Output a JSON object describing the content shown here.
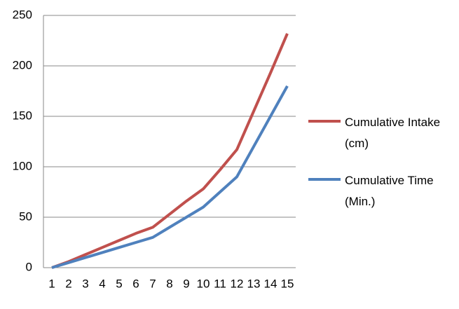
{
  "chart_data": {
    "type": "line",
    "categories": [
      "1",
      "2",
      "3",
      "4",
      "5",
      "6",
      "7",
      "8",
      "9",
      "10",
      "11",
      "12",
      "13",
      "14",
      "15"
    ],
    "series": [
      {
        "name": "Cumulative Intake (cm)",
        "color": "#c0504d",
        "values": [
          0,
          6,
          13,
          20,
          27,
          34,
          40,
          53,
          66,
          78,
          97,
          117,
          155,
          193,
          232
        ]
      },
      {
        "name": "Cumulative Time (Min.)",
        "color": "#4f81bd",
        "values": [
          0,
          5,
          10,
          15,
          20,
          25,
          30,
          40,
          50,
          60,
          75,
          90,
          120,
          150,
          180
        ]
      }
    ],
    "ylim": [
      0,
      250
    ],
    "yticks": [
      0,
      50,
      100,
      150,
      200,
      250
    ],
    "grid": true,
    "legend": "right"
  }
}
